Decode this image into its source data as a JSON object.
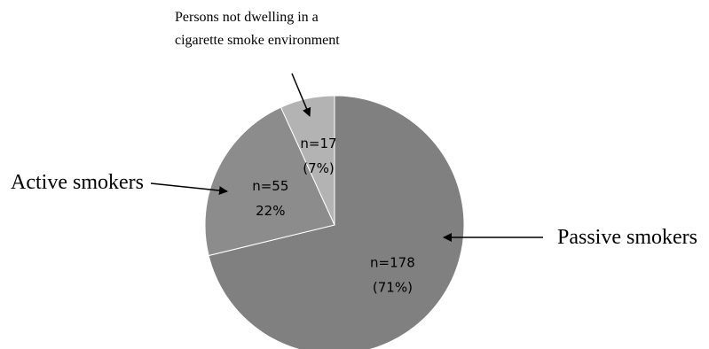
{
  "chart_data": {
    "type": "pie",
    "slices": [
      {
        "label": "Passive smokers",
        "n_label": "n=178",
        "pct_label": "(71%)",
        "value": 178,
        "color": "#808080"
      },
      {
        "label": "Active smokers",
        "n_label": "n=55",
        "pct_label": "22%",
        "value": 55,
        "color": "#8c8c8c"
      },
      {
        "label": "Persons not dwelling in a cigarette smoke environment",
        "label_lines": [
          "Persons not dwelling in a",
          "cigarette smoke environment"
        ],
        "n_label": "n=17",
        "pct_label": "(7%)",
        "value": 17,
        "color": "#b3b3b3"
      }
    ]
  }
}
